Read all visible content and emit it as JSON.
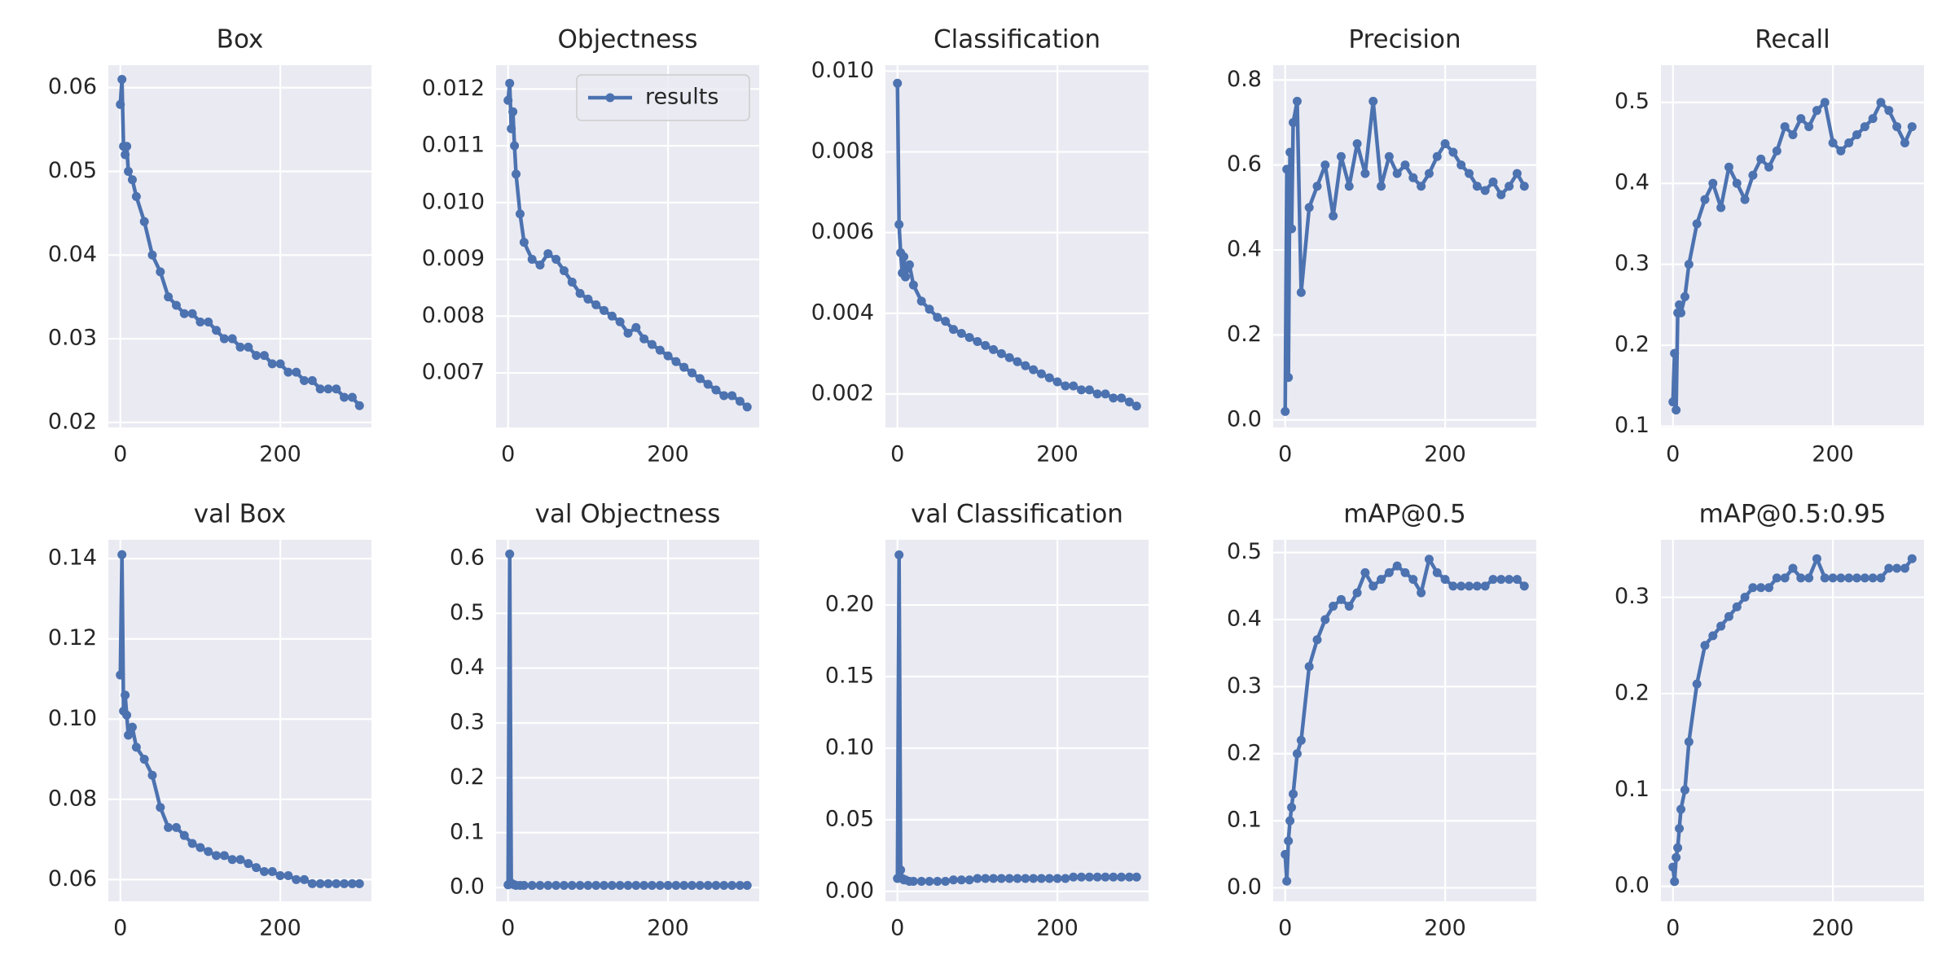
{
  "chart_data": [
    {
      "type": "line",
      "title": "Box",
      "x": [
        0,
        2,
        4,
        6,
        8,
        10,
        15,
        20,
        30,
        40,
        50,
        60,
        70,
        80,
        90,
        100,
        110,
        120,
        130,
        140,
        150,
        160,
        170,
        180,
        190,
        200,
        210,
        220,
        230,
        240,
        250,
        260,
        270,
        280,
        290,
        299
      ],
      "xlim": [
        -15,
        314
      ],
      "xticks": [
        0,
        200
      ],
      "ylim": [
        0.0194,
        0.0627
      ],
      "yticks": [
        0.02,
        0.03,
        0.04,
        0.05,
        0.06
      ],
      "grid": true,
      "series": [
        {
          "color": "#4c72b0",
          "values": [
            0.058,
            0.061,
            0.053,
            0.052,
            0.053,
            0.05,
            0.049,
            0.047,
            0.044,
            0.04,
            0.038,
            0.035,
            0.034,
            0.033,
            0.033,
            0.032,
            0.032,
            0.031,
            0.03,
            0.03,
            0.029,
            0.029,
            0.028,
            0.028,
            0.027,
            0.027,
            0.026,
            0.026,
            0.025,
            0.025,
            0.024,
            0.024,
            0.024,
            0.023,
            0.023,
            0.022
          ]
        }
      ]
    },
    {
      "type": "line",
      "title": "Objectness",
      "legend": "upper right",
      "x": [
        0,
        2,
        4,
        6,
        8,
        10,
        15,
        20,
        30,
        40,
        50,
        60,
        70,
        80,
        90,
        100,
        110,
        120,
        130,
        140,
        150,
        160,
        170,
        180,
        190,
        200,
        210,
        220,
        230,
        240,
        250,
        260,
        270,
        280,
        290,
        299
      ],
      "xlim": [
        -15,
        314
      ],
      "xticks": [
        0,
        200
      ],
      "ylim": [
        0.00604,
        0.01242
      ],
      "yticks": [
        0.007,
        0.008,
        0.009,
        {
          "value": 0.01,
          "label": "0.010"
        },
        0.011,
        0.012
      ],
      "grid": true,
      "series": [
        {
          "name": "results",
          "color": "#4c72b0",
          "values": [
            0.0118,
            0.0121,
            0.0113,
            0.0116,
            0.011,
            0.0105,
            0.0098,
            0.0093,
            0.009,
            0.0089,
            0.0091,
            0.009,
            0.0088,
            0.0086,
            0.0084,
            0.0083,
            0.0082,
            0.0081,
            0.008,
            0.0079,
            0.0077,
            0.0078,
            0.0076,
            0.0075,
            0.0074,
            0.0073,
            0.0072,
            0.0071,
            0.007,
            0.0069,
            0.0068,
            0.0067,
            0.0066,
            0.0066,
            0.0065,
            0.0064
          ]
        }
      ]
    },
    {
      "type": "line",
      "title": "Classification",
      "x": [
        0,
        2,
        4,
        6,
        8,
        10,
        15,
        20,
        30,
        40,
        50,
        60,
        70,
        80,
        90,
        100,
        110,
        120,
        130,
        140,
        150,
        160,
        170,
        180,
        190,
        200,
        210,
        220,
        230,
        240,
        250,
        260,
        270,
        280,
        290,
        299
      ],
      "xlim": [
        -15,
        314
      ],
      "xticks": [
        0,
        200
      ],
      "ylim": [
        0.00117,
        0.01015
      ],
      "yticks": [
        0.002,
        0.004,
        0.006,
        0.008,
        {
          "value": 0.01,
          "label": "0.010"
        }
      ],
      "grid": true,
      "series": [
        {
          "color": "#4c72b0",
          "values": [
            0.0097,
            0.0062,
            0.0055,
            0.005,
            0.0054,
            0.0049,
            0.0052,
            0.0047,
            0.0043,
            0.0041,
            0.0039,
            0.0038,
            0.0036,
            0.0035,
            0.0034,
            0.0033,
            0.0032,
            0.0031,
            0.003,
            0.0029,
            0.0028,
            0.0027,
            0.0026,
            0.0025,
            0.0024,
            0.0023,
            0.0022,
            0.0022,
            0.0021,
            0.0021,
            0.002,
            0.002,
            0.0019,
            0.0019,
            0.0018,
            0.0017
          ]
        }
      ]
    },
    {
      "type": "line",
      "title": "Precision",
      "x": [
        0,
        2,
        4,
        6,
        8,
        10,
        15,
        20,
        30,
        40,
        50,
        60,
        70,
        80,
        90,
        100,
        110,
        120,
        130,
        140,
        150,
        160,
        170,
        180,
        190,
        200,
        210,
        220,
        230,
        240,
        250,
        260,
        270,
        280,
        290,
        299
      ],
      "xlim": [
        -15,
        314
      ],
      "xticks": [
        0,
        200
      ],
      "ylim": [
        -0.0176,
        0.835
      ],
      "yticks": [
        {
          "value": 0,
          "label": "0.0"
        },
        0.2,
        0.4,
        0.6,
        0.8
      ],
      "grid": true,
      "series": [
        {
          "color": "#4c72b0",
          "values": [
            0.02,
            0.59,
            0.1,
            0.63,
            0.45,
            0.7,
            0.75,
            0.3,
            0.5,
            0.55,
            0.6,
            0.48,
            0.62,
            0.55,
            0.65,
            0.58,
            0.75,
            0.55,
            0.62,
            0.58,
            0.6,
            0.57,
            0.55,
            0.58,
            0.62,
            0.65,
            0.63,
            0.6,
            0.58,
            0.55,
            0.54,
            0.56,
            0.53,
            0.55,
            0.58,
            0.55
          ]
        }
      ]
    },
    {
      "type": "line",
      "title": "Recall",
      "x": [
        0,
        2,
        4,
        6,
        8,
        10,
        15,
        20,
        30,
        40,
        50,
        60,
        70,
        80,
        90,
        100,
        110,
        120,
        130,
        140,
        150,
        160,
        170,
        180,
        190,
        200,
        210,
        220,
        230,
        240,
        250,
        260,
        270,
        280,
        290,
        299
      ],
      "xlim": [
        -15,
        314
      ],
      "xticks": [
        0,
        200
      ],
      "ylim": [
        0.0985,
        0.546
      ],
      "yticks": [
        0.1,
        0.2,
        0.3,
        0.4,
        0.5
      ],
      "grid": true,
      "series": [
        {
          "color": "#4c72b0",
          "values": [
            0.13,
            0.19,
            0.12,
            0.24,
            0.25,
            0.24,
            0.26,
            0.3,
            0.35,
            0.38,
            0.4,
            0.37,
            0.42,
            0.4,
            0.38,
            0.41,
            0.43,
            0.42,
            0.44,
            0.47,
            0.46,
            0.48,
            0.47,
            0.49,
            0.5,
            0.45,
            0.44,
            0.45,
            0.46,
            0.47,
            0.48,
            0.5,
            0.49,
            0.47,
            0.45,
            0.47
          ]
        }
      ]
    },
    {
      "type": "line",
      "title": "val Box",
      "x": [
        0,
        2,
        4,
        6,
        8,
        10,
        15,
        20,
        30,
        40,
        50,
        60,
        70,
        80,
        90,
        100,
        110,
        120,
        130,
        140,
        150,
        160,
        170,
        180,
        190,
        200,
        210,
        220,
        230,
        240,
        250,
        260,
        270,
        280,
        290,
        299
      ],
      "xlim": [
        -15,
        314
      ],
      "xticks": [
        0,
        200
      ],
      "ylim": [
        0.0546,
        0.1447
      ],
      "yticks": [
        0.06,
        0.08,
        {
          "value": 0.1,
          "label": "0.10"
        },
        0.12,
        0.14
      ],
      "grid": true,
      "series": [
        {
          "color": "#4c72b0",
          "values": [
            0.111,
            0.141,
            0.102,
            0.106,
            0.101,
            0.096,
            0.098,
            0.093,
            0.09,
            0.086,
            0.078,
            0.073,
            0.073,
            0.071,
            0.069,
            0.068,
            0.067,
            0.066,
            0.066,
            0.065,
            0.065,
            0.064,
            0.063,
            0.062,
            0.062,
            0.061,
            0.061,
            0.06,
            0.06,
            0.059,
            0.059,
            0.059,
            0.059,
            0.059,
            0.059,
            0.059
          ]
        }
      ]
    },
    {
      "type": "line",
      "title": "val Objectness",
      "x": [
        0,
        2,
        4,
        6,
        8,
        10,
        15,
        20,
        30,
        40,
        50,
        60,
        70,
        80,
        90,
        100,
        110,
        120,
        130,
        140,
        150,
        160,
        170,
        180,
        190,
        200,
        210,
        220,
        230,
        240,
        250,
        260,
        270,
        280,
        290,
        299
      ],
      "xlim": [
        -15,
        314
      ],
      "xticks": [
        0,
        200
      ],
      "ylim": [
        -0.025,
        0.634
      ],
      "yticks": [
        {
          "value": 0,
          "label": "0.0"
        },
        0.1,
        0.2,
        0.3,
        0.4,
        0.5,
        0.6
      ],
      "grid": true,
      "series": [
        {
          "color": "#4c72b0",
          "values": [
            0.005,
            0.608,
            0.008,
            0.006,
            0.005,
            0.004,
            0.004,
            0.004,
            0.004,
            0.004,
            0.004,
            0.004,
            0.004,
            0.004,
            0.004,
            0.004,
            0.004,
            0.004,
            0.004,
            0.004,
            0.004,
            0.004,
            0.004,
            0.004,
            0.004,
            0.004,
            0.004,
            0.004,
            0.004,
            0.004,
            0.004,
            0.004,
            0.004,
            0.004,
            0.004,
            0.004
          ]
        }
      ]
    },
    {
      "type": "line",
      "title": "val Classification",
      "x": [
        0,
        2,
        4,
        6,
        8,
        10,
        15,
        20,
        30,
        40,
        50,
        60,
        70,
        80,
        90,
        100,
        110,
        120,
        130,
        140,
        150,
        160,
        170,
        180,
        190,
        200,
        210,
        220,
        230,
        240,
        250,
        260,
        270,
        280,
        290,
        299
      ],
      "xlim": [
        -15,
        314
      ],
      "xticks": [
        0,
        200
      ],
      "ylim": [
        -0.0069,
        0.2455
      ],
      "yticks": [
        {
          "value": 0,
          "label": "0.00"
        },
        0.05,
        {
          "value": 0.1,
          "label": "0.10"
        },
        0.15,
        {
          "value": 0.2,
          "label": "0.20"
        }
      ],
      "grid": true,
      "series": [
        {
          "color": "#4c72b0",
          "values": [
            0.009,
            0.235,
            0.015,
            0.009,
            0.008,
            0.008,
            0.007,
            0.007,
            0.007,
            0.007,
            0.007,
            0.007,
            0.008,
            0.008,
            0.008,
            0.009,
            0.009,
            0.009,
            0.009,
            0.009,
            0.009,
            0.009,
            0.009,
            0.009,
            0.009,
            0.009,
            0.009,
            0.01,
            0.01,
            0.01,
            0.01,
            0.01,
            0.01,
            0.01,
            0.01,
            0.01
          ]
        }
      ]
    },
    {
      "type": "line",
      "title": "mAP@0.5",
      "x": [
        0,
        2,
        4,
        6,
        8,
        10,
        15,
        20,
        30,
        40,
        50,
        60,
        70,
        80,
        90,
        100,
        110,
        120,
        130,
        140,
        150,
        160,
        170,
        180,
        190,
        200,
        210,
        220,
        230,
        240,
        250,
        260,
        270,
        280,
        290,
        299
      ],
      "xlim": [
        -15,
        314
      ],
      "xticks": [
        0,
        200
      ],
      "ylim": [
        -0.02,
        0.519
      ],
      "yticks": [
        {
          "value": 0,
          "label": "0.0"
        },
        0.1,
        0.2,
        0.3,
        0.4,
        0.5
      ],
      "grid": true,
      "series": [
        {
          "color": "#4c72b0",
          "values": [
            0.05,
            0.01,
            0.07,
            0.1,
            0.12,
            0.14,
            0.2,
            0.22,
            0.33,
            0.37,
            0.4,
            0.42,
            0.43,
            0.42,
            0.44,
            0.47,
            0.45,
            0.46,
            0.47,
            0.48,
            0.47,
            0.46,
            0.44,
            0.49,
            0.47,
            0.46,
            0.45,
            0.45,
            0.45,
            0.45,
            0.45,
            0.46,
            0.46,
            0.46,
            0.46,
            0.45
          ]
        }
      ]
    },
    {
      "type": "line",
      "title": "mAP@0.5:0.95",
      "x": [
        0,
        2,
        4,
        6,
        8,
        10,
        15,
        20,
        30,
        40,
        50,
        60,
        70,
        80,
        90,
        100,
        110,
        120,
        130,
        140,
        150,
        160,
        170,
        180,
        190,
        200,
        210,
        220,
        230,
        240,
        250,
        260,
        270,
        280,
        290,
        299
      ],
      "xlim": [
        -15,
        314
      ],
      "xticks": [
        0,
        200
      ],
      "ylim": [
        -0.0155,
        0.3596
      ],
      "yticks": [
        {
          "value": 0,
          "label": "0.0"
        },
        0.1,
        0.2,
        0.3
      ],
      "grid": true,
      "series": [
        {
          "color": "#4c72b0",
          "values": [
            0.02,
            0.005,
            0.03,
            0.04,
            0.06,
            0.08,
            0.1,
            0.15,
            0.21,
            0.25,
            0.26,
            0.27,
            0.28,
            0.29,
            0.3,
            0.31,
            0.31,
            0.31,
            0.32,
            0.32,
            0.33,
            0.32,
            0.32,
            0.34,
            0.32,
            0.32,
            0.32,
            0.32,
            0.32,
            0.32,
            0.32,
            0.32,
            0.33,
            0.33,
            0.33,
            0.34
          ]
        }
      ]
    }
  ]
}
